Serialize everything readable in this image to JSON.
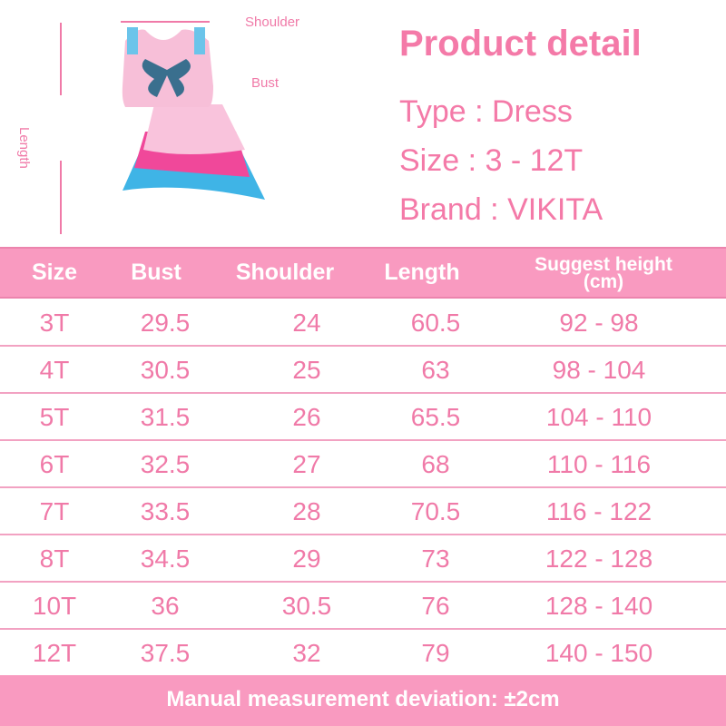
{
  "measure_labels": {
    "shoulder": "Shoulder",
    "bust": "Bust",
    "length": "Length"
  },
  "product_detail": {
    "title": "Product detail",
    "type": "Type : Dress",
    "size": "Size : 3 - 12T",
    "brand": "Brand : VIKITA"
  },
  "table": {
    "headers": [
      "Size",
      "Bust",
      "Shoulder",
      "Length",
      "Suggest height (cm)"
    ],
    "header_height_line1": "Suggest height",
    "header_height_line2": "(cm)",
    "rows": [
      [
        "3T",
        "29.5",
        "24",
        "60.5",
        "92 - 98"
      ],
      [
        "4T",
        "30.5",
        "25",
        "63",
        "98 - 104"
      ],
      [
        "5T",
        "31.5",
        "26",
        "65.5",
        "104 - 110"
      ],
      [
        "6T",
        "32.5",
        "27",
        "68",
        "110 - 116"
      ],
      [
        "7T",
        "33.5",
        "28",
        "70.5",
        "116 - 122"
      ],
      [
        "8T",
        "34.5",
        "29",
        "73",
        "122 - 128"
      ],
      [
        "10T",
        "36",
        "30.5",
        "76",
        "128 - 140"
      ],
      [
        "12T",
        "37.5",
        "32",
        "79",
        "140 - 150"
      ]
    ]
  },
  "footer": "Manual measurement deviation: ±2cm",
  "colors": {
    "accent": "#f99ac0",
    "text": "#f07aa8"
  }
}
